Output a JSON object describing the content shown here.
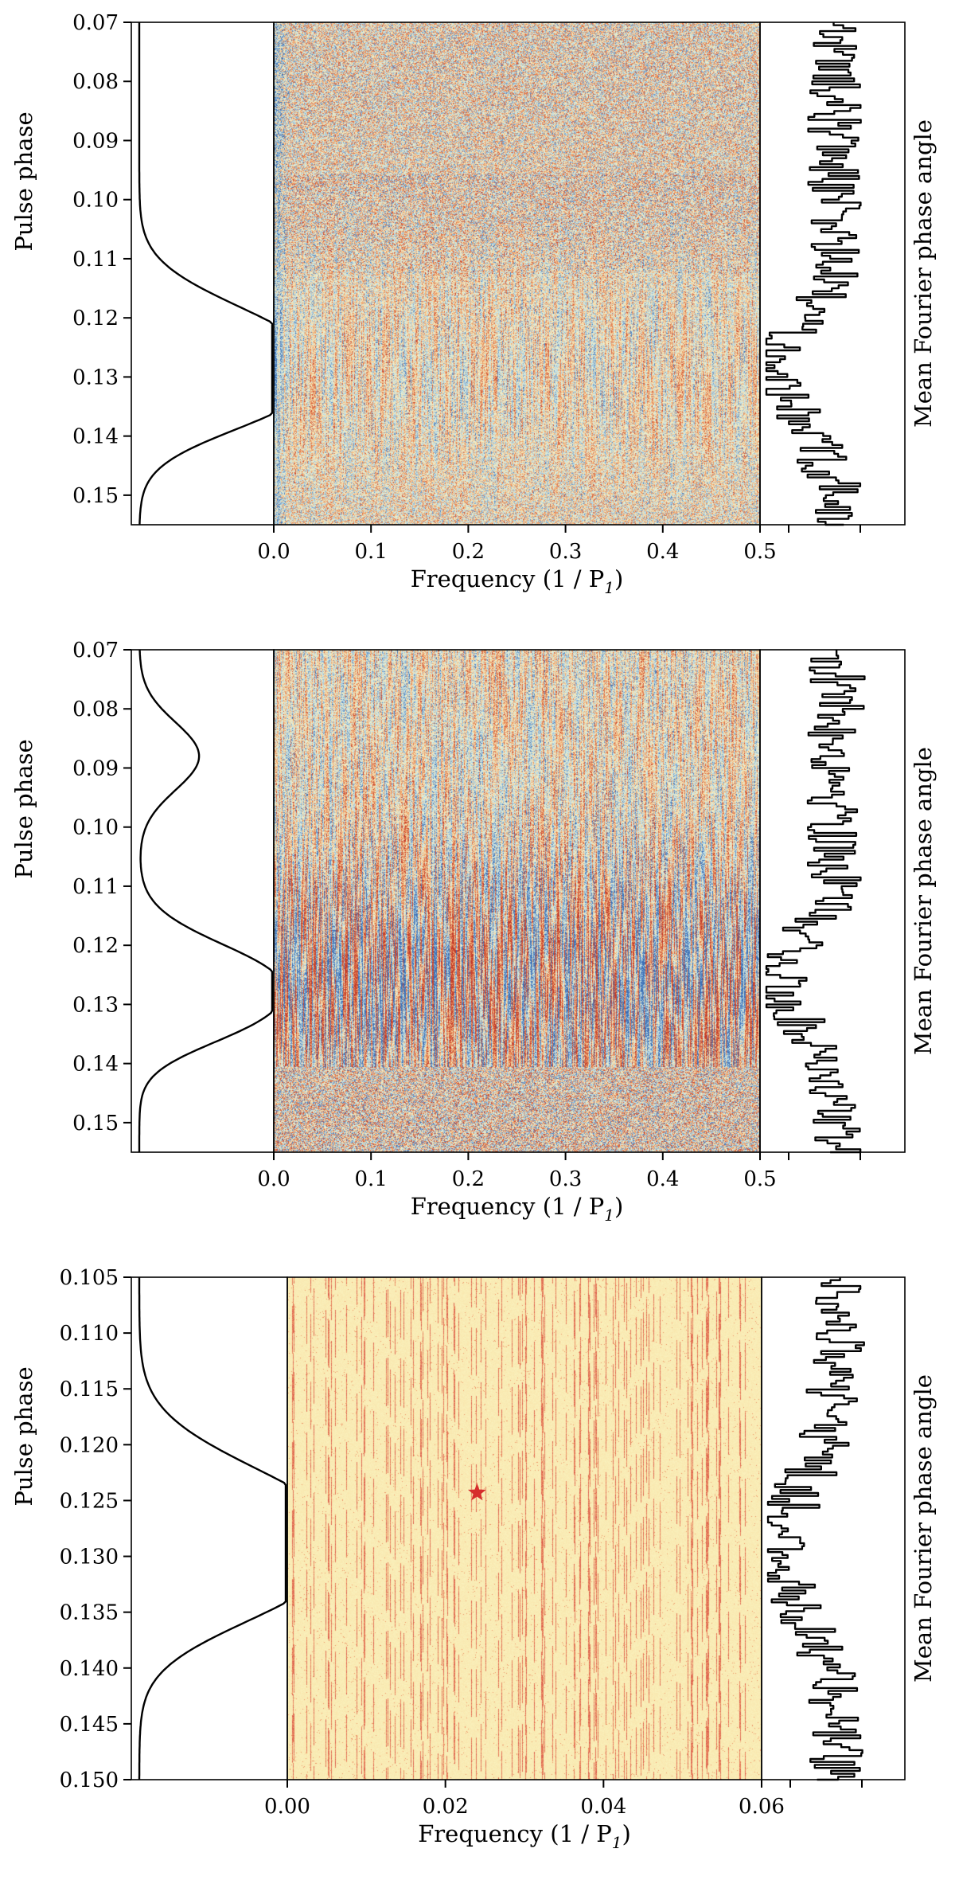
{
  "chart_data": [
    {
      "type": "heatmap",
      "panel": 1,
      "ylabel": "Pulse phase",
      "xlabel": "Frequency (1 / P",
      "xlabel_sub": "1",
      "xlabel_close": ")",
      "right_label": "Mean Fourier phase angle",
      "ylim": [
        0.07,
        0.155
      ],
      "yticks": [
        0.07,
        0.08,
        0.09,
        0.1,
        0.11,
        0.12,
        0.13,
        0.14,
        0.15
      ],
      "ytick_labels": [
        "0.07",
        "0.08",
        "0.09",
        "0.10",
        "0.11",
        "0.12",
        "0.13",
        "0.14",
        "0.15"
      ],
      "xlim": [
        0.0,
        0.5
      ],
      "xticks": [
        0.0,
        0.1,
        0.2,
        0.3,
        0.4,
        0.5
      ],
      "xtick_labels": [
        "0.0",
        "0.1",
        "0.2",
        "0.3",
        "0.4",
        "0.5"
      ],
      "colormap": [
        "#3b6fb6",
        "#b8dcea",
        "#f6f2c7",
        "#f2a56a",
        "#c43c2a"
      ],
      "style": "noisy",
      "profile": {
        "peak_phase": 0.129,
        "shoulder_phase": 0.121,
        "second_shoulder_phase": 0.136,
        "width": 0.0105
      },
      "angle_extra_ticks": [
        0.5
      ]
    },
    {
      "type": "heatmap",
      "panel": 2,
      "ylabel": "Pulse phase",
      "xlabel": "Frequency (1 / P",
      "xlabel_sub": "1",
      "xlabel_close": ")",
      "right_label": "Mean Fourier phase angle",
      "ylim": [
        0.07,
        0.155
      ],
      "yticks": [
        0.07,
        0.08,
        0.09,
        0.1,
        0.11,
        0.12,
        0.13,
        0.14,
        0.15
      ],
      "ytick_labels": [
        "0.07",
        "0.08",
        "0.09",
        "0.10",
        "0.11",
        "0.12",
        "0.13",
        "0.14",
        "0.15"
      ],
      "xlim": [
        0.0,
        0.5
      ],
      "xticks": [
        0.0,
        0.1,
        0.2,
        0.3,
        0.4,
        0.5
      ],
      "xtick_labels": [
        "0.0",
        "0.1",
        "0.2",
        "0.3",
        "0.4",
        "0.5"
      ],
      "colormap": [
        "#3b6fb6",
        "#b8dcea",
        "#f6f2c7",
        "#f2a56a",
        "#c43c2a"
      ],
      "style": "striped",
      "profile": {
        "peak_phase": 0.126,
        "shoulder_phase": 0.088,
        "second_shoulder_phase": 0.134,
        "width": 0.009
      },
      "angle_extra_ticks": [
        0.5
      ]
    },
    {
      "type": "heatmap",
      "panel": 3,
      "ylabel": "Pulse phase",
      "xlabel": "Frequency (1 / P",
      "xlabel_sub": "1",
      "xlabel_close": ")",
      "right_label": "Mean Fourier phase angle",
      "ylim": [
        0.105,
        0.15
      ],
      "yticks": [
        0.105,
        0.11,
        0.115,
        0.12,
        0.125,
        0.13,
        0.135,
        0.14,
        0.145,
        0.15
      ],
      "ytick_labels": [
        "0.105",
        "0.110",
        "0.115",
        "0.120",
        "0.125",
        "0.130",
        "0.135",
        "0.140",
        "0.145",
        "0.150"
      ],
      "xlim": [
        0.0,
        0.06
      ],
      "xticks": [
        0.0,
        0.02,
        0.04,
        0.06
      ],
      "xtick_labels": [
        "0.00",
        "0.02",
        "0.04",
        "0.06"
      ],
      "colormap": [
        "#fbf5c2",
        "#f6d99b",
        "#ef9b6a",
        "#d9554a"
      ],
      "style": "lines",
      "marker": {
        "x": 0.024,
        "y": 0.1243,
        "symbol": "star",
        "color": "#d62d2d"
      },
      "profile": {
        "peak_phase": 0.129,
        "shoulder_phase": 0.1245,
        "second_shoulder_phase": 0.134,
        "width": 0.0072
      },
      "angle_extra_ticks": [
        0.06
      ]
    }
  ]
}
